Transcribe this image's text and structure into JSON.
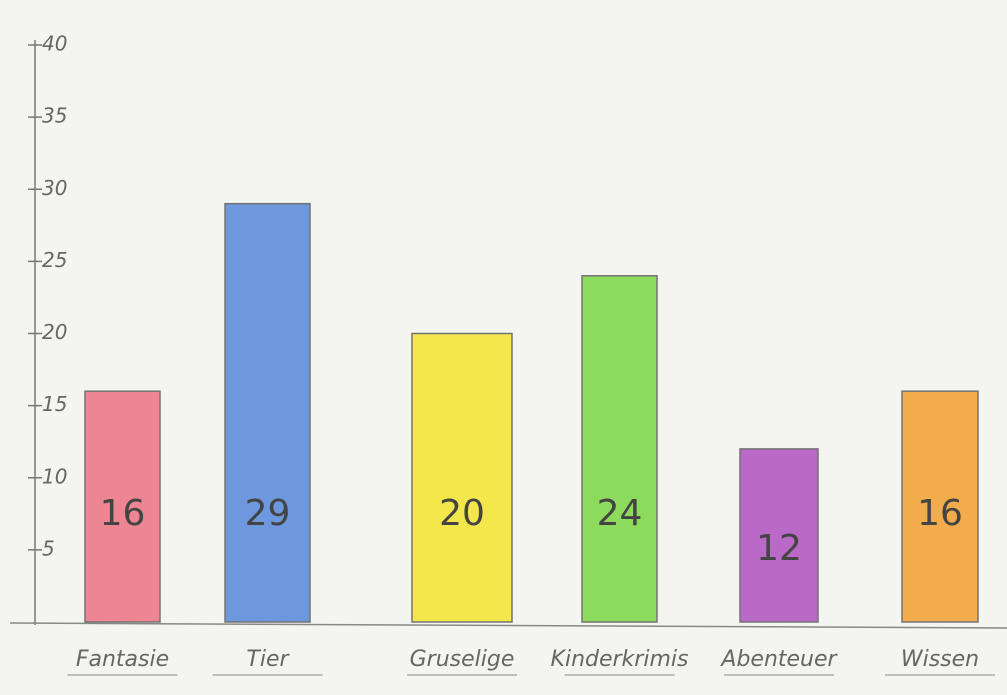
{
  "chart_data": {
    "type": "bar",
    "categories": [
      "Fantasie",
      "Tier",
      "Gruselige",
      "Kinderkrimis",
      "Abenteuer",
      "Wissen"
    ],
    "values": [
      16,
      29,
      20,
      24,
      12,
      16
    ],
    "colors": [
      "#ee7a88",
      "#5f8fdc",
      "#f4e63a",
      "#82d94e",
      "#b45bc4",
      "#f3a53a"
    ],
    "ylim": [
      0,
      40
    ],
    "yticks": [
      5,
      10,
      15,
      20,
      25,
      30,
      35,
      40
    ],
    "grid": false
  }
}
